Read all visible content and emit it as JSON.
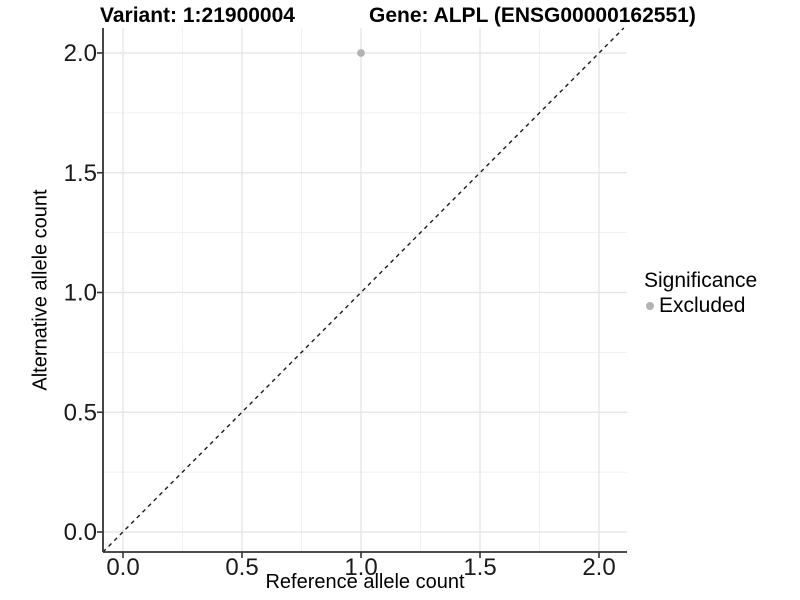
{
  "figure": {
    "title_left": "Variant: 1:21900004",
    "title_right": "Gene: ALPL (ENSG00000162551)"
  },
  "axes": {
    "x_label": "Reference allele count",
    "y_label": "Alternative allele count"
  },
  "legend": {
    "title": "Significance",
    "items": [
      {
        "label": "Excluded",
        "color": "#b3b3b3"
      }
    ]
  },
  "chart_data": {
    "type": "scatter",
    "title": "Variant: 1:21900004 / Gene: ALPL (ENSG00000162551)",
    "xlabel": "Reference allele count",
    "ylabel": "Alternative allele count",
    "xlim": [
      -0.1,
      2.1
    ],
    "ylim": [
      -0.1,
      2.1
    ],
    "x_ticks": [
      0,
      0.5,
      1,
      1.5,
      2
    ],
    "y_ticks": [
      0,
      0.5,
      1,
      1.5,
      2
    ],
    "x_tick_labels": [
      "0.0",
      "0.5",
      "1.0",
      "1.5",
      "2.0"
    ],
    "y_tick_labels": [
      "0.0",
      "0.5",
      "1.0",
      "1.5",
      "2.0"
    ],
    "x_minor_ticks": [
      0.25,
      0.75,
      1.25,
      1.75
    ],
    "y_minor_ticks": [
      0.25,
      0.75,
      1.25,
      1.75
    ],
    "grid": true,
    "legend_position": "right",
    "series": [
      {
        "name": "Excluded",
        "color": "#b3b3b3",
        "points": [
          {
            "x": 1.0,
            "y": 2.0
          }
        ]
      }
    ],
    "reference_line": {
      "kind": "identity-diagonal",
      "style": "dashed",
      "color": "#1a1a1a"
    },
    "colors": {
      "background": "#ffffff",
      "grid_major": "#e4e4e4",
      "grid_minor": "#f1f1f1",
      "axis_line": "#333333",
      "tick_mark": "#333333",
      "tick_text": "#1a1a1a"
    }
  }
}
